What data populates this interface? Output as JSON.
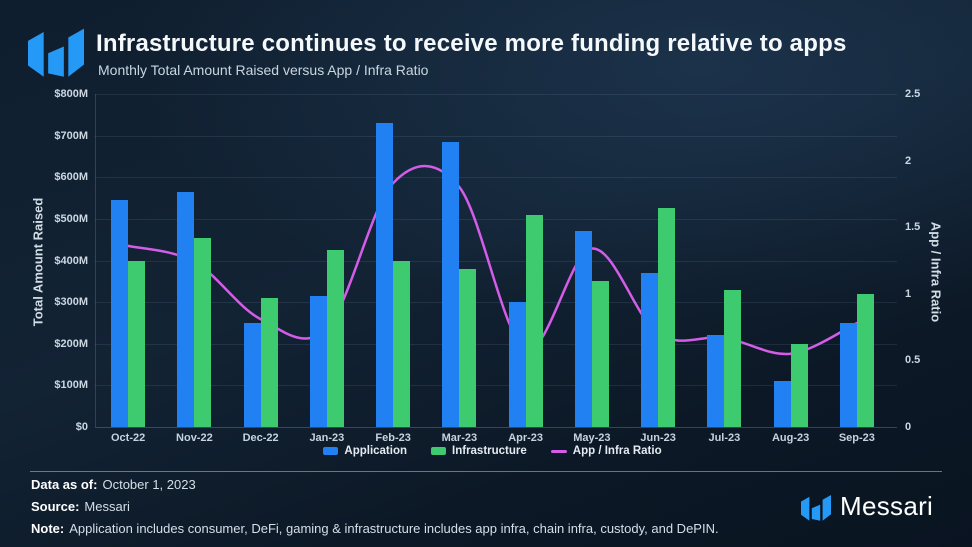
{
  "header": {
    "title": "Infrastructure continues to receive more funding relative to apps",
    "subtitle": "Monthly Total Amount Raised versus App / Infra Ratio"
  },
  "colors": {
    "application": "#2181f2",
    "infrastructure": "#3eca6e",
    "ratio_line": "#d45ce8",
    "logo_blue": "#2499f5"
  },
  "chart_data": {
    "type": "bar",
    "title": "Monthly Total Amount Raised versus App / Infra Ratio",
    "categories": [
      "Oct-22",
      "Nov-22",
      "Dec-22",
      "Jan-23",
      "Feb-23",
      "Mar-23",
      "Apr-23",
      "May-23",
      "Jun-23",
      "Jul-23",
      "Aug-23",
      "Sep-23"
    ],
    "series": [
      {
        "name": "Application",
        "type": "bar",
        "axis": "left",
        "values": [
          545,
          565,
          250,
          315,
          730,
          685,
          300,
          470,
          370,
          220,
          110,
          250
        ]
      },
      {
        "name": "Infrastructure",
        "type": "bar",
        "axis": "left",
        "values": [
          400,
          455,
          310,
          425,
          400,
          380,
          510,
          350,
          525,
          330,
          200,
          320
        ]
      },
      {
        "name": "App / Infra Ratio",
        "type": "line",
        "axis": "right",
        "values": [
          1.36,
          1.24,
          0.81,
          0.74,
          1.83,
          1.8,
          0.59,
          1.34,
          0.7,
          0.67,
          0.55,
          0.78
        ]
      }
    ],
    "left_axis": {
      "label": "Total Amount Raised",
      "min": 0,
      "max": 800,
      "unit": "$M",
      "ticks": [
        {
          "label": "$0",
          "value": 0
        },
        {
          "label": "$100M",
          "value": 100
        },
        {
          "label": "$200M",
          "value": 200
        },
        {
          "label": "$300M",
          "value": 300
        },
        {
          "label": "$400M",
          "value": 400
        },
        {
          "label": "$500M",
          "value": 500
        },
        {
          "label": "$600M",
          "value": 600
        },
        {
          "label": "$700M",
          "value": 700
        },
        {
          "label": "$800M",
          "value": 800
        }
      ]
    },
    "right_axis": {
      "label": "App / Infra Ratio",
      "min": 0,
      "max": 2.5,
      "ticks": [
        {
          "label": "0",
          "value": 0
        },
        {
          "label": "0.5",
          "value": 0.5
        },
        {
          "label": "1",
          "value": 1
        },
        {
          "label": "1.5",
          "value": 1.5
        },
        {
          "label": "2",
          "value": 2
        },
        {
          "label": "2.5",
          "value": 2.5
        }
      ]
    },
    "legend": [
      "Application",
      "Infrastructure",
      "App / Infra Ratio"
    ],
    "grid": "horizontal",
    "legend_position": "bottom-center"
  },
  "footer": {
    "data_as_of_label": "Data as of:",
    "data_as_of_value": "October 1, 2023",
    "source_label": "Source:",
    "source_value": "Messari",
    "note_label": "Note:",
    "note_value": "Application includes consumer, DeFi, gaming & infrastructure includes app infra, chain infra, custody, and DePIN.",
    "brand": "Messari"
  }
}
